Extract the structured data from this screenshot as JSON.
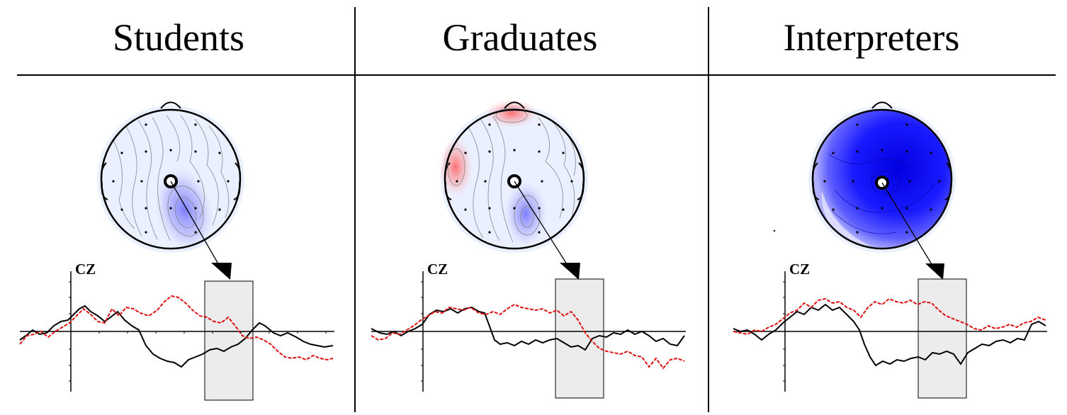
{
  "columns": [
    {
      "title": "Students",
      "channel": "CZ"
    },
    {
      "title": "Graduates",
      "channel": "CZ"
    },
    {
      "title": "Interpreters",
      "channel": "CZ"
    }
  ],
  "colors": {
    "negative": "#1a1aff",
    "positive": "#ff3030",
    "trace_a": "#000000",
    "trace_b": "#e01010",
    "window": "#ececec"
  }
}
